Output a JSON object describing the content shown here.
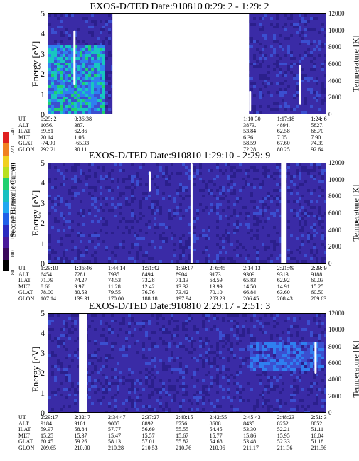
{
  "colors": {
    "background": "#3a2ba6",
    "dark": "#2b1f8c",
    "mid": "#3b4fd0",
    "bright": "#2f7ff0",
    "cyan": "#18c6c0",
    "green": "#20d070",
    "gap": "#ffffff"
  },
  "colorbar": {
    "label": "Second Harmonic Current",
    "ticks": [
      "80",
      "100",
      "120",
      "140",
      "160",
      "180",
      "200",
      "220",
      "240"
    ],
    "colors": [
      "#000000",
      "#3a0a5a",
      "#4a1a9a",
      "#2b2bc0",
      "#2060e8",
      "#20a8f0",
      "#18c0c0",
      "#20d070",
      "#b8e020",
      "#f0d020",
      "#f08020",
      "#e02020"
    ]
  },
  "chart_data": [
    {
      "type": "heatmap",
      "title": "EXOS-D/TED   Date:910810  0:29: 2 - 1:29: 2",
      "ylabel": "Energy [eV]",
      "ylabel_right": "Temperature [K]",
      "yticks": [
        "0",
        "1",
        "2",
        "3",
        "4",
        "5"
      ],
      "ylim": [
        0,
        5
      ],
      "yticks_right": [
        "0",
        "2000",
        "4000",
        "6000",
        "8000",
        "10000",
        "12000"
      ],
      "ylim_right": [
        0,
        12000
      ],
      "gaps": [
        [
          0.23,
          0.72
        ]
      ],
      "features": [
        {
          "kind": "intense-low-energy",
          "x": [
            0.0,
            0.2
          ],
          "energy": [
            0,
            3.5
          ]
        },
        {
          "kind": "stripe",
          "x": 0.09,
          "energy": [
            1.5,
            4.2
          ]
        },
        {
          "kind": "stripe",
          "x": 0.72,
          "energy": [
            0.2,
            1.2
          ]
        },
        {
          "kind": "stripe",
          "x": 0.9,
          "energy": [
            0.5,
            2.5
          ]
        }
      ],
      "orbit": {
        "rows": [
          "UT",
          "ALT",
          "ILAT",
          "MLT",
          "GLAT",
          "GLON"
        ],
        "columns": [
          {
            "UT": "0:29: 2",
            "ALT": "1056.",
            "ILAT": "59.81",
            "MLT": "20.14",
            "GLAT": "-74.90",
            "GLON": "292.21"
          },
          {
            "UT": "0:36:38",
            "ALT": "387.",
            "ILAT": "62.86",
            "MLT": "1.06",
            "GLAT": "-65.33",
            "GLON": "30.11"
          },
          {
            "UT": "",
            "ALT": "",
            "ILAT": "",
            "MLT": "",
            "GLAT": "",
            "GLON": ""
          },
          {
            "UT": "",
            "ALT": "",
            "ILAT": "",
            "MLT": "",
            "GLAT": "",
            "GLON": ""
          },
          {
            "UT": "",
            "ALT": "",
            "ILAT": "",
            "MLT": "",
            "GLAT": "",
            "GLON": ""
          },
          {
            "UT": "",
            "ALT": "",
            "ILAT": "",
            "MLT": "",
            "GLAT": "",
            "GLON": ""
          },
          {
            "UT": "1:10:30",
            "ALT": "3873.",
            "ILAT": "53.84",
            "MLT": "6.36",
            "GLAT": "58.59",
            "GLON": "72.28"
          },
          {
            "UT": "1:17:18",
            "ALT": "4894.",
            "ILAT": "62.58",
            "MLT": "7.05",
            "GLAT": "67.60",
            "GLON": "80.25"
          },
          {
            "UT": "1:24: 6",
            "ALT": "5827.",
            "ILAT": "68.70",
            "MLT": "7.90",
            "GLAT": "74.39",
            "GLON": "92.64"
          }
        ]
      }
    },
    {
      "type": "heatmap",
      "title": "EXOS-D/TED   Date:910810  1:29:10 - 2:29: 9",
      "ylabel": "Energy [eV]",
      "ylabel_right": "Temperature [K]",
      "yticks": [
        "0",
        "1",
        "2",
        "3",
        "4",
        "5"
      ],
      "ylim": [
        0,
        5
      ],
      "yticks_right": [
        "0",
        "2000",
        "4000",
        "6000",
        "8000",
        "10000",
        "12000"
      ],
      "ylim_right": [
        0,
        12000
      ],
      "gaps": [
        [
          0.835,
          0.855
        ]
      ],
      "features": [
        {
          "kind": "stripe",
          "x": 0.36,
          "energy": [
            3.6,
            4.6
          ]
        },
        {
          "kind": "stripe",
          "x": 0.51,
          "energy": [
            0.0,
            5.0
          ]
        }
      ],
      "orbit": {
        "rows": [
          "UT",
          "ALT",
          "ILAT",
          "MLT",
          "GLAT",
          "GLON"
        ],
        "columns": [
          {
            "UT": "1:29:10",
            "ALT": "6454.",
            "ILAT": "71.79",
            "MLT": "8.66",
            "GLAT": "78.00",
            "GLON": "107.14"
          },
          {
            "UT": "1:36:46",
            "ALT": "7281.",
            "ILAT": "74.27",
            "MLT": "9.97",
            "GLAT": "80.53",
            "GLON": "139.31"
          },
          {
            "UT": "1:44:14",
            "ALT": "7935.",
            "ILAT": "74.53",
            "MLT": "11.28",
            "GLAT": "79.55",
            "GLON": "170.00"
          },
          {
            "UT": "1:51:42",
            "ALT": "8494.",
            "ILAT": "73.28",
            "MLT": "12.42",
            "GLAT": "76.76",
            "GLON": "188.18"
          },
          {
            "UT": "1:59:17",
            "ALT": "8904.",
            "ILAT": "71.13",
            "MLT": "13.32",
            "GLAT": "73.42",
            "GLON": "197.94"
          },
          {
            "UT": "2: 6:45",
            "ALT": "9173.",
            "ILAT": "68.59",
            "MLT": "13.99",
            "GLAT": "70.10",
            "GLON": "203.29"
          },
          {
            "UT": "2:14:13",
            "ALT": "9309.",
            "ILAT": "65.83",
            "MLT": "14.50",
            "GLAT": "66.84",
            "GLON": "206.45"
          },
          {
            "UT": "2:21:49",
            "ALT": "9313.",
            "ILAT": "62.92",
            "MLT": "14.91",
            "GLAT": "63.60",
            "GLON": "208.43"
          },
          {
            "UT": "2:29: 9",
            "ALT": "9188.",
            "ILAT": "60.03",
            "MLT": "15.25",
            "GLAT": "60.50",
            "GLON": "209.63"
          }
        ]
      }
    },
    {
      "type": "heatmap",
      "title": "EXOS-D/TED   Date:910810  2:29:17 - 2:51: 3",
      "ylabel": "Energy [eV]",
      "ylabel_right": "Temperature [K]",
      "yticks": [
        "0",
        "1",
        "2",
        "3",
        "4",
        "5"
      ],
      "ylim": [
        0,
        5
      ],
      "yticks_right": [
        "0",
        "2000",
        "4000",
        "6000",
        "8000",
        "10000",
        "12000"
      ],
      "ylim_right": [
        0,
        12000
      ],
      "gaps": [
        [
          0.11,
          0.14
        ]
      ],
      "features": [
        {
          "kind": "bright-band",
          "x": [
            0.72,
            0.98
          ],
          "energy": [
            2.2,
            3.6
          ]
        },
        {
          "kind": "stripe",
          "x": 0.955,
          "energy": [
            2.0,
            3.6
          ]
        }
      ],
      "orbit": {
        "rows": [
          "UT",
          "ALT",
          "ILAT",
          "MLT",
          "GLAT",
          "GLON"
        ],
        "columns": [
          {
            "UT": "2:29:17",
            "ALT": "9184.",
            "ILAT": "59.97",
            "MLT": "15.25",
            "GLAT": "60.45",
            "GLON": "209.65"
          },
          {
            "UT": "2:32: 7",
            "ALT": "9101.",
            "ILAT": "58.84",
            "MLT": "15.37",
            "GLAT": "59.26",
            "GLON": "210.00"
          },
          {
            "UT": "2:34:47",
            "ALT": "9005.",
            "ILAT": "57.77",
            "MLT": "15.47",
            "GLAT": "58.13",
            "GLON": "210.28"
          },
          {
            "UT": "2:37:27",
            "ALT": "8892.",
            "ILAT": "56.69",
            "MLT": "15.57",
            "GLAT": "57.01",
            "GLON": "210.53"
          },
          {
            "UT": "2:40:15",
            "ALT": "8756.",
            "ILAT": "55.55",
            "MLT": "15.67",
            "GLAT": "55.82",
            "GLON": "210.76"
          },
          {
            "UT": "2:42:55",
            "ALT": "8608.",
            "ILAT": "54.45",
            "MLT": "15.77",
            "GLAT": "54.68",
            "GLON": "210.96"
          },
          {
            "UT": "2:45:43",
            "ALT": "8435.",
            "ILAT": "53.30",
            "MLT": "15.86",
            "GLAT": "53.48",
            "GLON": "211.17"
          },
          {
            "UT": "2:48:23",
            "ALT": "8252.",
            "ILAT": "52.21",
            "MLT": "15.95",
            "GLAT": "52.33",
            "GLON": "211.36"
          },
          {
            "UT": "2:51: 3",
            "ALT": "8052.",
            "ILAT": "51.11",
            "MLT": "16.04",
            "GLAT": "51.18",
            "GLON": "211.56"
          }
        ]
      }
    }
  ]
}
